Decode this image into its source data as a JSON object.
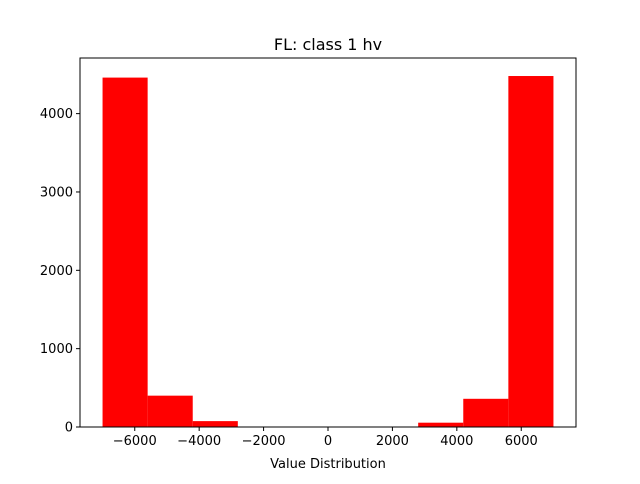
{
  "chart_data": {
    "type": "histogram",
    "title": "FL: class 1 hv",
    "xlabel": "Value Distribution",
    "ylabel": "",
    "bar_color": "#ff0000",
    "xlim": [
      -7700,
      7700
    ],
    "ylim": [
      0,
      4710
    ],
    "bins": [
      {
        "x0": -7000,
        "x1": -5600,
        "count": 4460
      },
      {
        "x0": -5600,
        "x1": -4200,
        "count": 400
      },
      {
        "x0": -4200,
        "x1": -2800,
        "count": 75
      },
      {
        "x0": -2800,
        "x1": -1400,
        "count": 0
      },
      {
        "x0": -1400,
        "x1": 0,
        "count": 0
      },
      {
        "x0": 0,
        "x1": 1400,
        "count": 0
      },
      {
        "x0": 1400,
        "x1": 2800,
        "count": 0
      },
      {
        "x0": 2800,
        "x1": 4200,
        "count": 55
      },
      {
        "x0": 4200,
        "x1": 5600,
        "count": 360
      },
      {
        "x0": 5600,
        "x1": 7000,
        "count": 4480
      }
    ],
    "xticks": [
      {
        "value": -6000,
        "label": "−6000"
      },
      {
        "value": -4000,
        "label": "−4000"
      },
      {
        "value": -2000,
        "label": "−2000"
      },
      {
        "value": 0,
        "label": "0"
      },
      {
        "value": 2000,
        "label": "2000"
      },
      {
        "value": 4000,
        "label": "4000"
      },
      {
        "value": 6000,
        "label": "6000"
      }
    ],
    "yticks": [
      {
        "value": 0,
        "label": "0"
      },
      {
        "value": 1000,
        "label": "1000"
      },
      {
        "value": 2000,
        "label": "2000"
      },
      {
        "value": 3000,
        "label": "3000"
      },
      {
        "value": 4000,
        "label": "4000"
      }
    ],
    "grid": false,
    "legend": "none"
  }
}
